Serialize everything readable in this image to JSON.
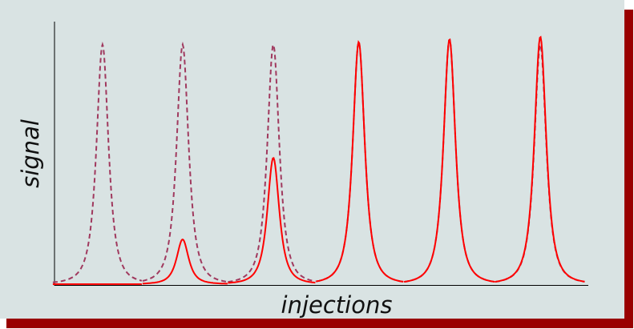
{
  "chart_data": {
    "type": "peaks",
    "x_label": "injections",
    "y_label": "signal",
    "x": [
      9,
      24,
      41,
      57,
      74,
      91
    ],
    "xlim": [
      0,
      100
    ],
    "ylim": [
      0,
      100
    ],
    "series": [
      {
        "name": null,
        "color": "#a0395e",
        "dashed": true,
        "values": [
          91,
          91,
          91,
          92,
          93,
          91
        ]
      },
      {
        "name": null,
        "color": "#ff0000",
        "dashed": false,
        "values": [
          0,
          17,
          48,
          92,
          93,
          94
        ]
      }
    ]
  }
}
